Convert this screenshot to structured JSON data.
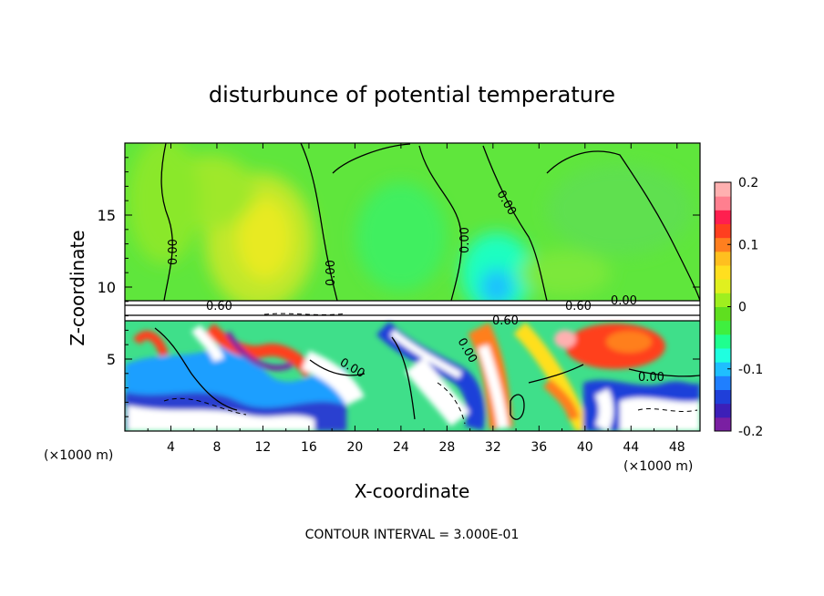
{
  "chart_data": {
    "type": "heatmap",
    "title": "disturbunce of potential temperature",
    "xlabel": "X-coordinate",
    "ylabel": "Z-coordinate",
    "x_unit_left": "(×1000 m)",
    "x_unit_right": "(×1000 m)",
    "xlim": [
      0,
      50
    ],
    "ylim": [
      0,
      20
    ],
    "x_ticks": [
      "4",
      "8",
      "12",
      "16",
      "20",
      "24",
      "28",
      "32",
      "36",
      "40",
      "44",
      "48"
    ],
    "y_ticks": [
      "5",
      "10",
      "15"
    ],
    "colorbar": {
      "range": [
        -0.2,
        0.2
      ],
      "tick_labels": [
        "0.2",
        "0.1",
        "0",
        "-0.1",
        "-0.2"
      ],
      "colors": [
        "#7a1fa2",
        "#3c1fb8",
        "#1f3fd9",
        "#1f7fff",
        "#1fbfff",
        "#1fffe0",
        "#1fff8f",
        "#3fef3f",
        "#5fdf1f",
        "#9fef1f",
        "#e0f01f",
        "#ffdf1f",
        "#ffbf1f",
        "#ff7f1f",
        "#ff3f1f",
        "#ff1f4f",
        "#ff7f8f",
        "#ffb0b0"
      ]
    },
    "contour_labels": [
      "0.00",
      "0.00",
      "0.00",
      "0.00",
      "0.60",
      "0.60",
      "0.00",
      "0.60",
      "0.00",
      "0.00",
      "0.00"
    ],
    "contour_interval_text": "CONTOUR INTERVAL = 3.000E-01",
    "grid": false
  }
}
